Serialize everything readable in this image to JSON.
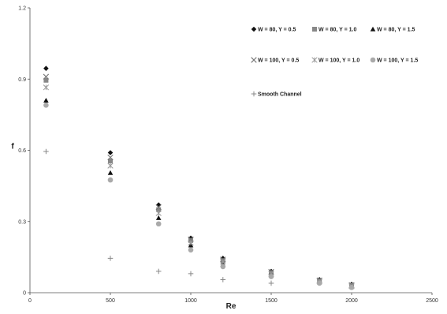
{
  "chart_data": {
    "type": "scatter",
    "title": "",
    "xlabel": "Re",
    "ylabel": "f",
    "xlim": [
      0,
      2500
    ],
    "ylim": [
      0,
      1.2
    ],
    "xticks": [
      "0",
      "500",
      "1000",
      "1500",
      "2000",
      "2500"
    ],
    "yticks": [
      "0",
      "0.3",
      "0.6",
      "0.9",
      "1.2"
    ],
    "grid": false,
    "legend_position": "top-right",
    "series": [
      {
        "name": "W = 80, Y = 0.5",
        "marker": "diamond",
        "color": "#111111",
        "x": [
          100,
          500,
          800,
          1000,
          1200,
          1500,
          1800,
          2000
        ],
        "y": [
          0.945,
          0.59,
          0.37,
          0.23,
          0.145,
          0.09,
          0.055,
          0.035
        ]
      },
      {
        "name": "W = 80, Y = 1.0",
        "marker": "square",
        "color": "#888888",
        "x": [
          100,
          500,
          800,
          1000,
          1200,
          1500,
          1800,
          2000
        ],
        "y": [
          0.895,
          0.555,
          0.35,
          0.22,
          0.135,
          0.085,
          0.05,
          0.03
        ]
      },
      {
        "name": "W = 80, Y = 1.5",
        "marker": "triangle",
        "color": "#111111",
        "x": [
          100,
          500,
          800,
          1000,
          1200,
          1500,
          1800,
          2000
        ],
        "y": [
          0.81,
          0.505,
          0.315,
          0.2,
          0.12,
          0.075,
          0.045,
          0.025
        ]
      },
      {
        "name": "W = 100, Y = 0.5",
        "marker": "x",
        "color": "#777777",
        "x": [
          100,
          500,
          800,
          1000,
          1200,
          1500,
          1800,
          2000
        ],
        "y": [
          0.91,
          0.57,
          0.36,
          0.225,
          0.14,
          0.088,
          0.052,
          0.032
        ]
      },
      {
        "name": "W = 100, Y = 1.0",
        "marker": "asterisk",
        "color": "#999999",
        "x": [
          100,
          500,
          800,
          1000,
          1200,
          1500,
          1800,
          2000
        ],
        "y": [
          0.865,
          0.535,
          0.335,
          0.21,
          0.13,
          0.08,
          0.048,
          0.028
        ]
      },
      {
        "name": "W = 100, Y = 1.5",
        "marker": "circle",
        "color": "#aaaaaa",
        "x": [
          100,
          500,
          800,
          1000,
          1200,
          1500,
          1800,
          2000
        ],
        "y": [
          0.79,
          0.475,
          0.29,
          0.18,
          0.11,
          0.068,
          0.04,
          0.022
        ]
      },
      {
        "name": "Smooth Channel",
        "marker": "plus",
        "color": "#888888",
        "x": [
          100,
          500,
          800,
          1000,
          1200,
          1500
        ],
        "y": [
          0.595,
          0.145,
          0.09,
          0.08,
          0.055,
          0.04
        ]
      }
    ]
  }
}
